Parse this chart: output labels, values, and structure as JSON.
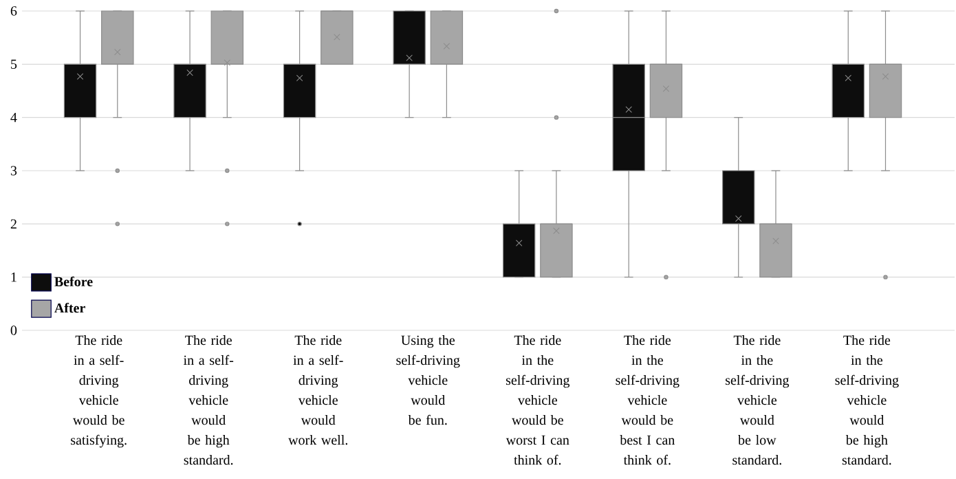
{
  "chart_data": {
    "type": "box",
    "categories": [
      "The ride in a self-driving vehicle would be satisfying.",
      "The ride in a self-driving vehicle would be high standard.",
      "The ride in a self-driving vehicle would work well.",
      "Using the self-driving vehicle would be fun.",
      "The ride in the self-driving vehicle would be worst I can think of.",
      "The ride in the self-driving vehicle would be best I can think of.",
      "The ride in the self-driving vehicle would be low standard.",
      "The ride in the self-driving vehicle would be high standard."
    ],
    "series": [
      {
        "name": "Before",
        "color": "#0d0d0d",
        "boxes": [
          {
            "low": 3,
            "q1": 4,
            "median": 5,
            "q3": 5,
            "high": 6,
            "mean": 4.77
          },
          {
            "low": 3,
            "q1": 4,
            "median": 5,
            "q3": 5,
            "high": 6,
            "mean": 4.84
          },
          {
            "low": 3,
            "q1": 4,
            "median": 5,
            "q3": 5,
            "high": 6,
            "mean": 4.74,
            "outliers": [
              2
            ]
          },
          {
            "low": 4,
            "q1": 5,
            "median": 5,
            "q3": 6,
            "high": 6,
            "mean": 5.12
          },
          {
            "low": 1,
            "q1": 1,
            "median": 2,
            "q3": 2,
            "high": 3,
            "mean": 1.64
          },
          {
            "low": 1,
            "q1": 3,
            "median": 4,
            "q3": 5,
            "high": 6,
            "mean": 4.15
          },
          {
            "low": 1,
            "q1": 2,
            "median": 2,
            "q3": 3,
            "high": 4,
            "mean": 2.1
          },
          {
            "low": 3,
            "q1": 4,
            "median": 5,
            "q3": 5,
            "high": 6,
            "mean": 4.74
          }
        ]
      },
      {
        "name": "After",
        "color": "#a6a6a6",
        "boxes": [
          {
            "low": 4,
            "q1": 5,
            "median": 5,
            "q3": 6,
            "high": 6,
            "mean": 5.23,
            "outliers": [
              3,
              2
            ]
          },
          {
            "low": 4,
            "q1": 5,
            "median": 5,
            "q3": 6,
            "high": 6,
            "mean": 5.03,
            "outliers": [
              3,
              2
            ]
          },
          {
            "low": 5,
            "q1": 5,
            "median": 6,
            "q3": 6,
            "high": 6,
            "mean": 5.51
          },
          {
            "low": 4,
            "q1": 5,
            "median": 5,
            "q3": 6,
            "high": 6,
            "mean": 5.34
          },
          {
            "low": 1,
            "q1": 1,
            "median": 2,
            "q3": 2,
            "high": 3,
            "mean": 1.87,
            "outliers": [
              4,
              6
            ]
          },
          {
            "low": 3,
            "q1": 4,
            "median": 5,
            "q3": 5,
            "high": 6,
            "mean": 4.54,
            "outliers": [
              1
            ]
          },
          {
            "low": 1,
            "q1": 1,
            "median": 2,
            "q3": 2,
            "high": 3,
            "mean": 1.68
          },
          {
            "low": 3,
            "q1": 4,
            "median": 5,
            "q3": 5,
            "high": 6,
            "mean": 4.77,
            "outliers": [
              1
            ]
          }
        ]
      }
    ],
    "ylim": [
      0,
      6
    ],
    "yticks": [
      0,
      1,
      2,
      3,
      4,
      5,
      6
    ],
    "grid": "y",
    "legend": "bottom left"
  }
}
